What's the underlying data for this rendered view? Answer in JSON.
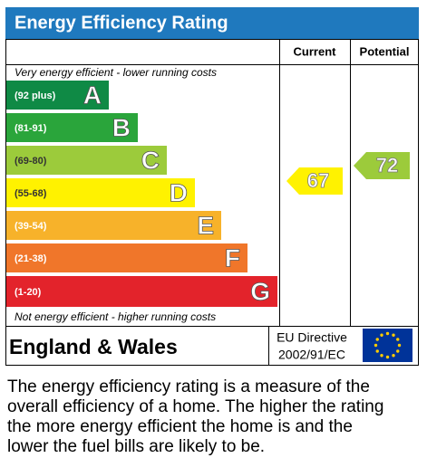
{
  "header": {
    "title": "Energy Efficiency Rating"
  },
  "columns": [
    "Current",
    "Potential"
  ],
  "top_note": "Very energy efficient - lower running costs",
  "bottom_note": "Not energy efficient - higher running costs",
  "bands": [
    {
      "range": "(92 plus)",
      "letter": "A"
    },
    {
      "range": "(81-91)",
      "letter": "B"
    },
    {
      "range": "(69-80)",
      "letter": "C"
    },
    {
      "range": "(55-68)",
      "letter": "D"
    },
    {
      "range": "(39-54)",
      "letter": "E"
    },
    {
      "range": "(21-38)",
      "letter": "F"
    },
    {
      "range": "(1-20)",
      "letter": "G"
    }
  ],
  "current": 67,
  "potential": 72,
  "footer": {
    "region": "England & Wales",
    "directive": [
      "EU Directive",
      "2002/91/EC"
    ]
  },
  "description": [
    "The energy efficiency rating is a measure of the",
    "overall efficiency of a home. The higher the rating",
    "the more energy efficient the home is and the",
    "lower the fuel bills are likely to be."
  ]
}
